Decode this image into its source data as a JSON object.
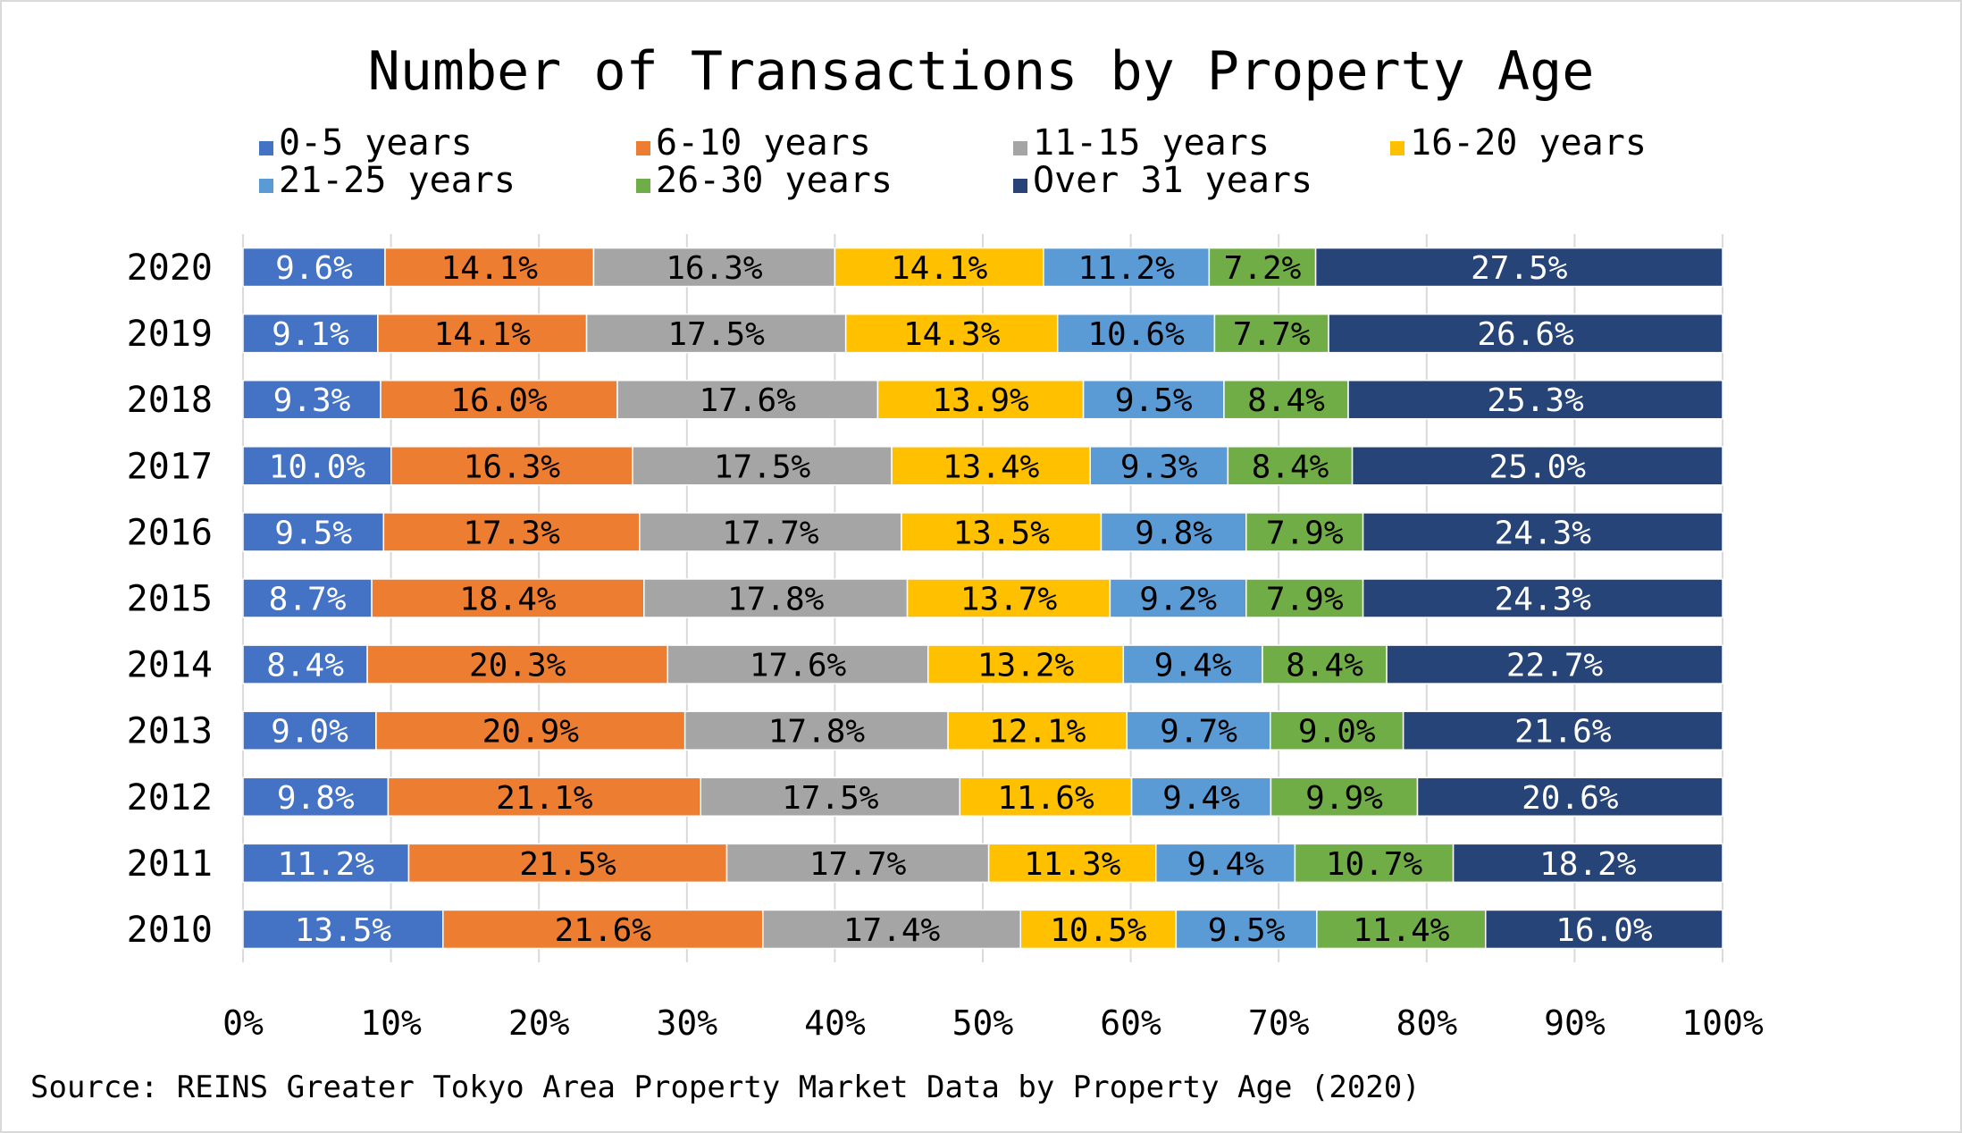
{
  "chart_data": {
    "type": "bar",
    "orientation": "horizontal",
    "stacked": "percent",
    "title": "Number of Transactions by Property Age",
    "source": "Source: REINS Greater Tokyo Area Property Market Data by Property Age (2020)",
    "categories": [
      "2020",
      "2019",
      "2018",
      "2017",
      "2016",
      "2015",
      "2014",
      "2013",
      "2012",
      "2011",
      "2010"
    ],
    "xlim": [
      0,
      100
    ],
    "x_ticks": [
      "0%",
      "10%",
      "20%",
      "30%",
      "40%",
      "50%",
      "60%",
      "70%",
      "80%",
      "90%",
      "100%"
    ],
    "grid": "vertical",
    "legend_position": "top",
    "series": [
      {
        "name": "0-5 years",
        "color": "#4472C4",
        "label_color": "#ffffff",
        "values": [
          9.6,
          9.1,
          9.3,
          10.0,
          9.5,
          8.7,
          8.4,
          9.0,
          9.8,
          11.2,
          13.5
        ],
        "labels": [
          "9.6%",
          "9.1%",
          "9.3%",
          "10.0%",
          "9.5%",
          "8.7%",
          "8.4%",
          "9.0%",
          "9.8%",
          "11.2%",
          "13.5%"
        ]
      },
      {
        "name": "6-10 years",
        "color": "#ED7D31",
        "label_color": "#000000",
        "values": [
          14.1,
          14.1,
          16.0,
          16.3,
          17.3,
          18.4,
          20.3,
          20.9,
          21.1,
          21.5,
          21.6
        ],
        "labels": [
          "14.1%",
          "14.1%",
          "16.0%",
          "16.3%",
          "17.3%",
          "18.4%",
          "20.3%",
          "20.9%",
          "21.1%",
          "21.5%",
          "21.6%"
        ]
      },
      {
        "name": "11-15 years",
        "color": "#A5A5A5",
        "label_color": "#000000",
        "values": [
          16.3,
          17.5,
          17.6,
          17.5,
          17.7,
          17.8,
          17.6,
          17.8,
          17.5,
          17.7,
          17.4
        ],
        "labels": [
          "16.3%",
          "17.5%",
          "17.6%",
          "17.5%",
          "17.7%",
          "17.8%",
          "17.6%",
          "17.8%",
          "17.5%",
          "17.7%",
          "17.4%"
        ]
      },
      {
        "name": "16-20 years",
        "color": "#FFC000",
        "label_color": "#000000",
        "values": [
          14.1,
          14.3,
          13.9,
          13.4,
          13.5,
          13.7,
          13.2,
          12.1,
          11.6,
          11.3,
          10.5
        ],
        "labels": [
          "14.1%",
          "14.3%",
          "13.9%",
          "13.4%",
          "13.5%",
          "13.7%",
          "13.2%",
          "12.1%",
          "11.6%",
          "11.3%",
          "10.5%"
        ]
      },
      {
        "name": "21-25 years",
        "color": "#5B9BD5",
        "label_color": "#000000",
        "values": [
          11.2,
          10.6,
          9.5,
          9.3,
          9.8,
          9.2,
          9.4,
          9.7,
          9.4,
          9.4,
          9.5
        ],
        "labels": [
          "11.2%",
          "10.6%",
          "9.5%",
          "9.3%",
          "9.8%",
          "9.2%",
          "9.4%",
          "9.7%",
          "9.4%",
          "9.4%",
          "9.5%"
        ]
      },
      {
        "name": "26-30 years",
        "color": "#70AD47",
        "label_color": "#000000",
        "values": [
          7.2,
          7.7,
          8.4,
          8.4,
          7.9,
          7.9,
          8.4,
          9.0,
          9.9,
          10.7,
          11.4
        ],
        "labels": [
          "7.2%",
          "7.7%",
          "8.4%",
          "8.4%",
          "7.9%",
          "7.9%",
          "8.4%",
          "9.0%",
          "9.9%",
          "10.7%",
          "11.4%"
        ]
      },
      {
        "name": "Over 31 years",
        "color": "#264478",
        "label_color": "#ffffff",
        "values": [
          27.5,
          26.6,
          25.3,
          25.0,
          24.3,
          24.3,
          22.7,
          21.6,
          20.6,
          18.2,
          16.0
        ],
        "labels": [
          "27.5%",
          "26.6%",
          "25.3%",
          "25.0%",
          "24.3%",
          "24.3%",
          "22.7%",
          "21.6%",
          "20.6%",
          "18.2%",
          "16.0%"
        ]
      }
    ]
  }
}
